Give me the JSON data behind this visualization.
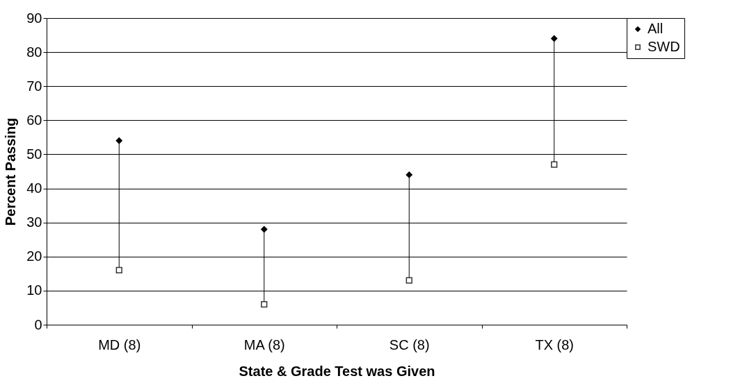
{
  "chart_data": {
    "type": "scatter",
    "xlabel": "State & Grade Test was Given",
    "ylabel": "Percent Passing",
    "categories": [
      "MD (8)",
      "MA (8)",
      "SC (8)",
      "TX (8)"
    ],
    "series": [
      {
        "name": "All",
        "color": "#000000",
        "marker": "diamond",
        "values": [
          54,
          28,
          44,
          84
        ]
      },
      {
        "name": "SWD",
        "color": "#333333",
        "marker": "square",
        "values": [
          16,
          6,
          13,
          47
        ]
      }
    ],
    "ylim": [
      0,
      90
    ],
    "yticks": [
      0,
      10,
      20,
      30,
      40,
      50,
      60,
      70,
      80,
      90
    ],
    "grid": "y",
    "legend": "right"
  }
}
